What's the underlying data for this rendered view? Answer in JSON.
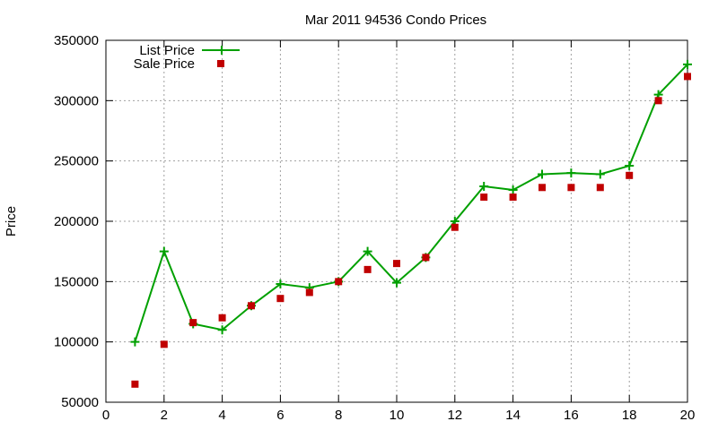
{
  "chart_data": {
    "type": "line",
    "title": "Mar 2011 94536 Condo Prices",
    "xlabel": "",
    "ylabel": "Price",
    "xlim": [
      0,
      20
    ],
    "ylim": [
      50000,
      350000
    ],
    "x_ticks": [
      0,
      2,
      4,
      6,
      8,
      10,
      12,
      14,
      16,
      18,
      20
    ],
    "y_ticks": [
      50000,
      100000,
      150000,
      200000,
      250000,
      300000,
      350000
    ],
    "x_tick_labels": [
      "0",
      "2",
      "4",
      "6",
      "8",
      "10",
      "12",
      "14",
      "16",
      "18",
      "20"
    ],
    "y_tick_labels": [
      "50000",
      "100000",
      "150000",
      "200000",
      "250000",
      "300000",
      "350000"
    ],
    "grid": true,
    "legend_position": "top-left",
    "series": [
      {
        "name": "List Price",
        "style": "line-with-plus-markers",
        "color": "#00a000",
        "x": [
          1,
          2,
          3,
          4,
          5,
          6,
          7,
          8,
          9,
          10,
          11,
          12,
          13,
          14,
          15,
          16,
          17,
          18,
          19,
          20
        ],
        "y": [
          100000,
          175000,
          115000,
          110000,
          130000,
          148000,
          145000,
          150000,
          175000,
          149000,
          170000,
          200000,
          229000,
          226000,
          239000,
          240000,
          239000,
          246000,
          305000,
          330000
        ]
      },
      {
        "name": "Sale Price",
        "style": "square-markers",
        "color": "#c00000",
        "x": [
          1,
          2,
          3,
          4,
          5,
          6,
          7,
          8,
          9,
          10,
          11,
          12,
          13,
          14,
          15,
          16,
          17,
          18,
          19,
          20
        ],
        "y": [
          65000,
          98000,
          116000,
          120000,
          130000,
          136000,
          141000,
          150000,
          160000,
          165000,
          170000,
          195000,
          220000,
          220000,
          228000,
          228000,
          228000,
          238000,
          300000,
          320000
        ]
      }
    ]
  }
}
